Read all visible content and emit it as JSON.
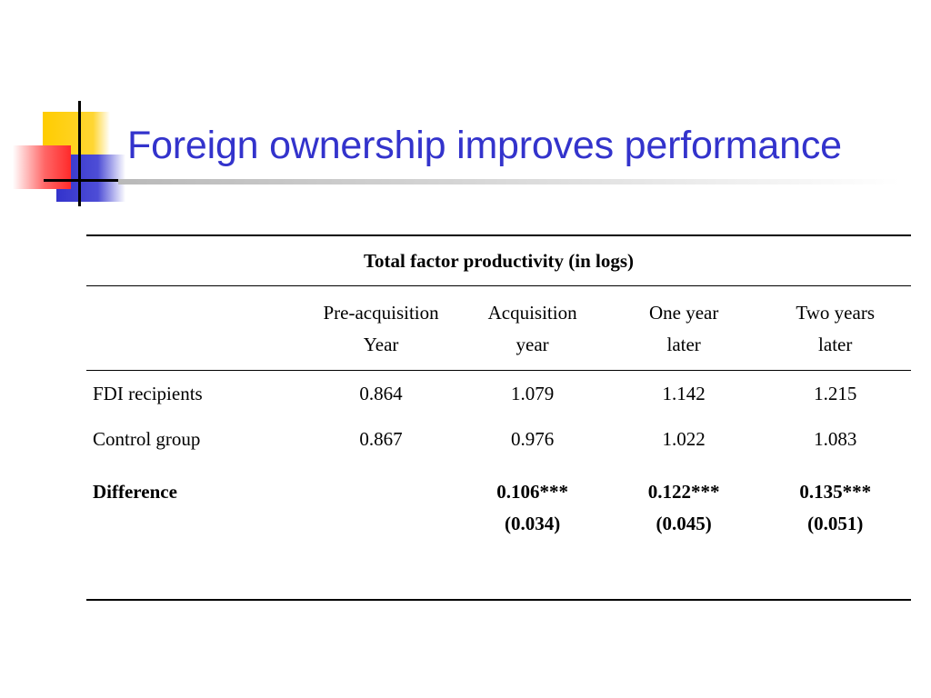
{
  "slide": {
    "title": "Foreign ownership improves performance"
  },
  "table": {
    "banner": "Total factor productivity (in logs)",
    "columns": [
      {
        "line1": "Pre-acquisition",
        "line2": "Year"
      },
      {
        "line1": "Acquisition",
        "line2": "year"
      },
      {
        "line1": "One year",
        "line2": "later"
      },
      {
        "line1": "Two years",
        "line2": "later"
      }
    ],
    "rows": [
      {
        "label": "FDI recipients",
        "values": [
          "0.864",
          "1.079",
          "1.142",
          "1.215"
        ]
      },
      {
        "label": "Control group",
        "values": [
          "0.867",
          "0.976",
          "1.022",
          "1.083"
        ]
      }
    ],
    "difference": {
      "label": "Difference",
      "cells": [
        {
          "estimate": "",
          "se": ""
        },
        {
          "estimate": "0.106***",
          "se": "(0.034)"
        },
        {
          "estimate": "0.122***",
          "se": "(0.045)"
        },
        {
          "estimate": "0.135***",
          "se": "(0.051)"
        }
      ]
    }
  },
  "colors": {
    "title": "#3333cc",
    "logo_yellow": "#ffcc00",
    "logo_red": "#ff3333",
    "logo_blue": "#3333cc"
  }
}
